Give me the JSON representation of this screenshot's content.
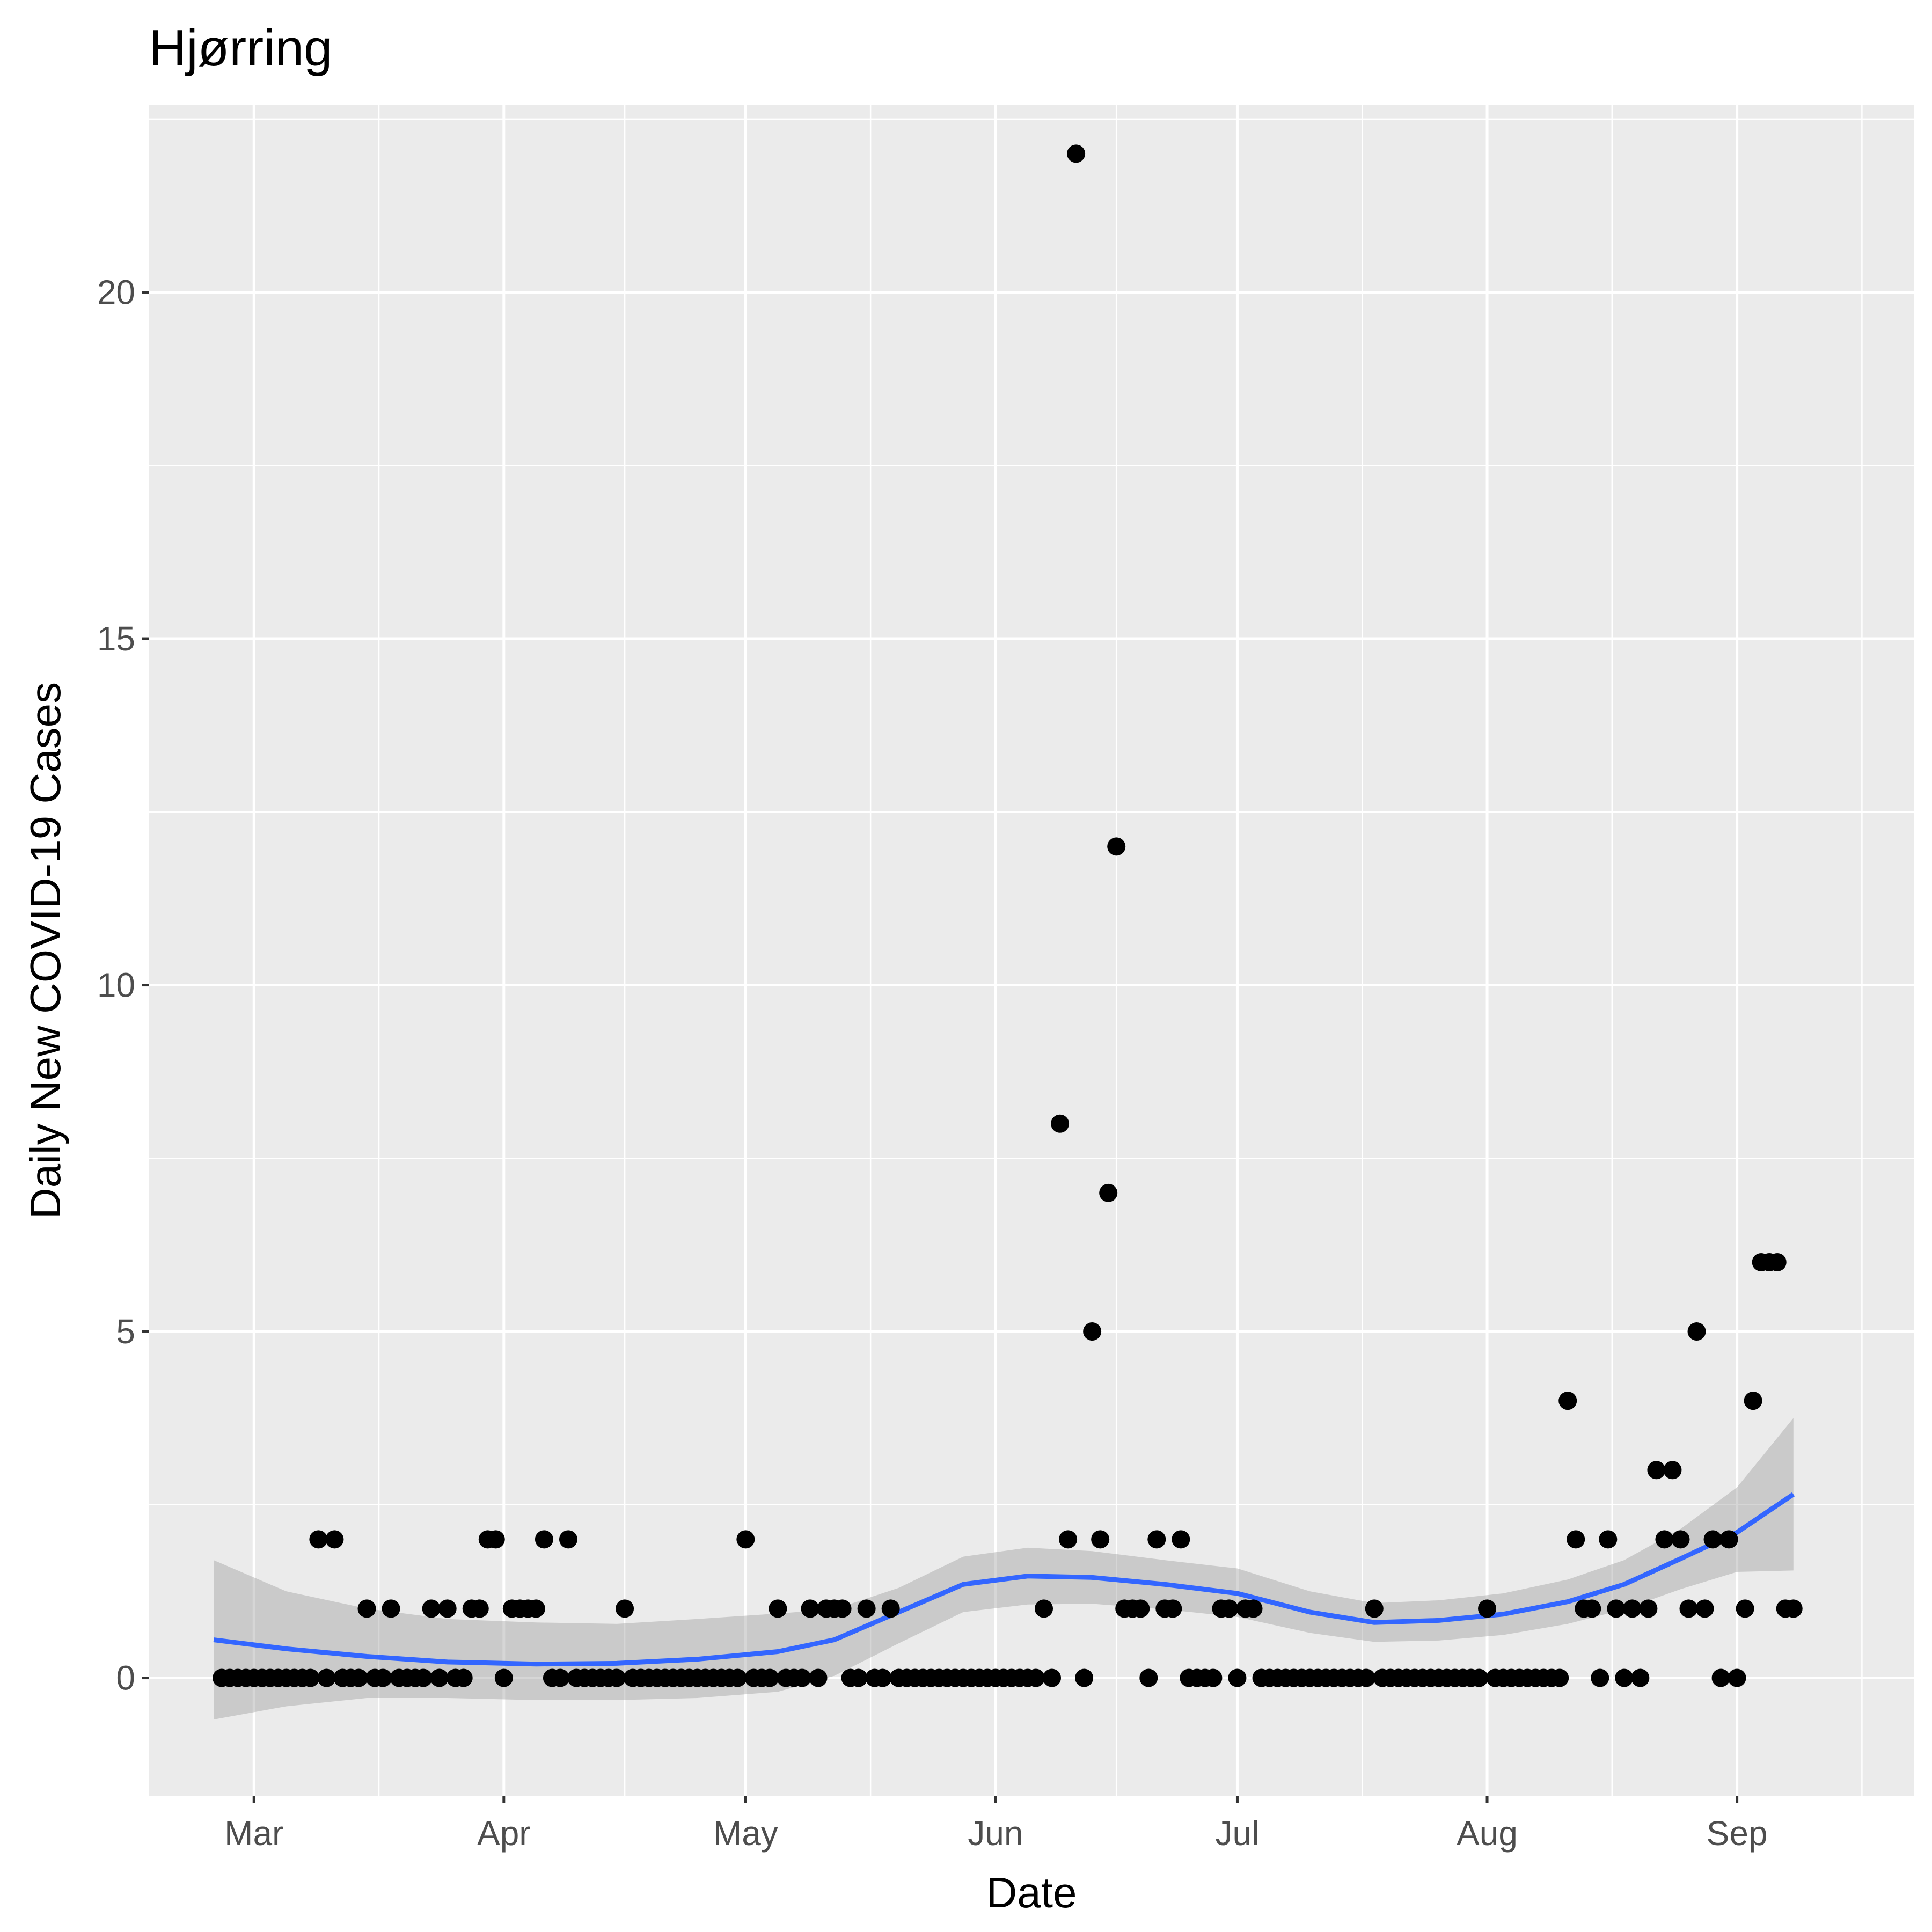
{
  "chart_data": {
    "type": "scatter",
    "title": "Hjørring",
    "xlabel": "Date",
    "ylabel": "Daily New COVID-19 Cases",
    "x_axis_type": "date",
    "xlim": [
      "2020-02-17",
      "2020-09-23"
    ],
    "ylim": [
      -1.7,
      22.7
    ],
    "x_ticks": [
      {
        "date": "2020-03-01",
        "label": "Mar"
      },
      {
        "date": "2020-04-01",
        "label": "Apr"
      },
      {
        "date": "2020-05-01",
        "label": "May"
      },
      {
        "date": "2020-06-01",
        "label": "Jun"
      },
      {
        "date": "2020-07-01",
        "label": "Jul"
      },
      {
        "date": "2020-08-01",
        "label": "Aug"
      },
      {
        "date": "2020-09-01",
        "label": "Sep"
      }
    ],
    "y_ticks": [
      0,
      5,
      10,
      15,
      20
    ],
    "grid": true,
    "colors": {
      "panel_background": "#ebebeb",
      "grid_line": "#ffffff",
      "point": "#000000",
      "smooth_line": "#3366ff",
      "ribbon": "#999999"
    },
    "series": [
      {
        "type": "points",
        "points": [
          [
            "2020-02-26",
            0
          ],
          [
            "2020-02-27",
            0
          ],
          [
            "2020-02-28",
            0
          ],
          [
            "2020-02-29",
            0
          ],
          [
            "2020-03-01",
            0
          ],
          [
            "2020-03-02",
            0
          ],
          [
            "2020-03-03",
            0
          ],
          [
            "2020-03-04",
            0
          ],
          [
            "2020-03-05",
            0
          ],
          [
            "2020-03-06",
            0
          ],
          [
            "2020-03-07",
            0
          ],
          [
            "2020-03-08",
            0
          ],
          [
            "2020-03-09",
            2
          ],
          [
            "2020-03-10",
            0
          ],
          [
            "2020-03-11",
            2
          ],
          [
            "2020-03-12",
            0
          ],
          [
            "2020-03-13",
            0
          ],
          [
            "2020-03-14",
            0
          ],
          [
            "2020-03-15",
            1
          ],
          [
            "2020-03-16",
            0
          ],
          [
            "2020-03-17",
            0
          ],
          [
            "2020-03-18",
            1
          ],
          [
            "2020-03-19",
            0
          ],
          [
            "2020-03-20",
            0
          ],
          [
            "2020-03-21",
            0
          ],
          [
            "2020-03-22",
            0
          ],
          [
            "2020-03-23",
            1
          ],
          [
            "2020-03-24",
            0
          ],
          [
            "2020-03-25",
            1
          ],
          [
            "2020-03-26",
            0
          ],
          [
            "2020-03-27",
            0
          ],
          [
            "2020-03-28",
            1
          ],
          [
            "2020-03-29",
            1
          ],
          [
            "2020-03-30",
            2
          ],
          [
            "2020-03-31",
            2
          ],
          [
            "2020-04-01",
            0
          ],
          [
            "2020-04-02",
            1
          ],
          [
            "2020-04-03",
            1
          ],
          [
            "2020-04-04",
            1
          ],
          [
            "2020-04-05",
            1
          ],
          [
            "2020-04-06",
            2
          ],
          [
            "2020-04-07",
            0
          ],
          [
            "2020-04-08",
            0
          ],
          [
            "2020-04-09",
            2
          ],
          [
            "2020-04-10",
            0
          ],
          [
            "2020-04-11",
            0
          ],
          [
            "2020-04-12",
            0
          ],
          [
            "2020-04-13",
            0
          ],
          [
            "2020-04-14",
            0
          ],
          [
            "2020-04-15",
            0
          ],
          [
            "2020-04-16",
            1
          ],
          [
            "2020-04-17",
            0
          ],
          [
            "2020-04-18",
            0
          ],
          [
            "2020-04-19",
            0
          ],
          [
            "2020-04-20",
            0
          ],
          [
            "2020-04-21",
            0
          ],
          [
            "2020-04-22",
            0
          ],
          [
            "2020-04-23",
            0
          ],
          [
            "2020-04-24",
            0
          ],
          [
            "2020-04-25",
            0
          ],
          [
            "2020-04-26",
            0
          ],
          [
            "2020-04-27",
            0
          ],
          [
            "2020-04-28",
            0
          ],
          [
            "2020-04-29",
            0
          ],
          [
            "2020-04-30",
            0
          ],
          [
            "2020-05-01",
            2
          ],
          [
            "2020-05-02",
            0
          ],
          [
            "2020-05-03",
            0
          ],
          [
            "2020-05-04",
            0
          ],
          [
            "2020-05-05",
            1
          ],
          [
            "2020-05-06",
            0
          ],
          [
            "2020-05-07",
            0
          ],
          [
            "2020-05-08",
            0
          ],
          [
            "2020-05-09",
            1
          ],
          [
            "2020-05-10",
            0
          ],
          [
            "2020-05-11",
            1
          ],
          [
            "2020-05-12",
            1
          ],
          [
            "2020-05-13",
            1
          ],
          [
            "2020-05-14",
            0
          ],
          [
            "2020-05-15",
            0
          ],
          [
            "2020-05-16",
            1
          ],
          [
            "2020-05-17",
            0
          ],
          [
            "2020-05-18",
            0
          ],
          [
            "2020-05-19",
            1
          ],
          [
            "2020-05-20",
            0
          ],
          [
            "2020-05-21",
            0
          ],
          [
            "2020-05-22",
            0
          ],
          [
            "2020-05-23",
            0
          ],
          [
            "2020-05-24",
            0
          ],
          [
            "2020-05-25",
            0
          ],
          [
            "2020-05-26",
            0
          ],
          [
            "2020-05-27",
            0
          ],
          [
            "2020-05-28",
            0
          ],
          [
            "2020-05-29",
            0
          ],
          [
            "2020-05-30",
            0
          ],
          [
            "2020-05-31",
            0
          ],
          [
            "2020-06-01",
            0
          ],
          [
            "2020-06-02",
            0
          ],
          [
            "2020-06-03",
            0
          ],
          [
            "2020-06-04",
            0
          ],
          [
            "2020-06-05",
            0
          ],
          [
            "2020-06-06",
            0
          ],
          [
            "2020-06-07",
            1
          ],
          [
            "2020-06-08",
            0
          ],
          [
            "2020-06-09",
            8
          ],
          [
            "2020-06-10",
            2
          ],
          [
            "2020-06-11",
            22
          ],
          [
            "2020-06-12",
            0
          ],
          [
            "2020-06-13",
            5
          ],
          [
            "2020-06-14",
            2
          ],
          [
            "2020-06-15",
            7
          ],
          [
            "2020-06-16",
            12
          ],
          [
            "2020-06-17",
            1
          ],
          [
            "2020-06-18",
            1
          ],
          [
            "2020-06-19",
            1
          ],
          [
            "2020-06-20",
            0
          ],
          [
            "2020-06-21",
            2
          ],
          [
            "2020-06-22",
            1
          ],
          [
            "2020-06-23",
            1
          ],
          [
            "2020-06-24",
            2
          ],
          [
            "2020-06-25",
            0
          ],
          [
            "2020-06-26",
            0
          ],
          [
            "2020-06-27",
            0
          ],
          [
            "2020-06-28",
            0
          ],
          [
            "2020-06-29",
            1
          ],
          [
            "2020-06-30",
            1
          ],
          [
            "2020-07-01",
            0
          ],
          [
            "2020-07-02",
            1
          ],
          [
            "2020-07-03",
            1
          ],
          [
            "2020-07-04",
            0
          ],
          [
            "2020-07-05",
            0
          ],
          [
            "2020-07-06",
            0
          ],
          [
            "2020-07-07",
            0
          ],
          [
            "2020-07-08",
            0
          ],
          [
            "2020-07-09",
            0
          ],
          [
            "2020-07-10",
            0
          ],
          [
            "2020-07-11",
            0
          ],
          [
            "2020-07-12",
            0
          ],
          [
            "2020-07-13",
            0
          ],
          [
            "2020-07-14",
            0
          ],
          [
            "2020-07-15",
            0
          ],
          [
            "2020-07-16",
            0
          ],
          [
            "2020-07-17",
            0
          ],
          [
            "2020-07-18",
            1
          ],
          [
            "2020-07-19",
            0
          ],
          [
            "2020-07-20",
            0
          ],
          [
            "2020-07-21",
            0
          ],
          [
            "2020-07-22",
            0
          ],
          [
            "2020-07-23",
            0
          ],
          [
            "2020-07-24",
            0
          ],
          [
            "2020-07-25",
            0
          ],
          [
            "2020-07-26",
            0
          ],
          [
            "2020-07-27",
            0
          ],
          [
            "2020-07-28",
            0
          ],
          [
            "2020-07-29",
            0
          ],
          [
            "2020-07-30",
            0
          ],
          [
            "2020-07-31",
            0
          ],
          [
            "2020-08-01",
            1
          ],
          [
            "2020-08-02",
            0
          ],
          [
            "2020-08-03",
            0
          ],
          [
            "2020-08-04",
            0
          ],
          [
            "2020-08-05",
            0
          ],
          [
            "2020-08-06",
            0
          ],
          [
            "2020-08-07",
            0
          ],
          [
            "2020-08-08",
            0
          ],
          [
            "2020-08-09",
            0
          ],
          [
            "2020-08-10",
            0
          ],
          [
            "2020-08-11",
            4
          ],
          [
            "2020-08-12",
            2
          ],
          [
            "2020-08-13",
            1
          ],
          [
            "2020-08-14",
            1
          ],
          [
            "2020-08-15",
            0
          ],
          [
            "2020-08-16",
            2
          ],
          [
            "2020-08-17",
            1
          ],
          [
            "2020-08-18",
            0
          ],
          [
            "2020-08-19",
            1
          ],
          [
            "2020-08-20",
            0
          ],
          [
            "2020-08-21",
            1
          ],
          [
            "2020-08-22",
            3
          ],
          [
            "2020-08-23",
            2
          ],
          [
            "2020-08-24",
            3
          ],
          [
            "2020-08-25",
            2
          ],
          [
            "2020-08-26",
            1
          ],
          [
            "2020-08-27",
            5
          ],
          [
            "2020-08-28",
            1
          ],
          [
            "2020-08-29",
            2
          ],
          [
            "2020-08-30",
            0
          ],
          [
            "2020-08-31",
            2
          ],
          [
            "2020-09-01",
            0
          ],
          [
            "2020-09-02",
            1
          ],
          [
            "2020-09-03",
            4
          ],
          [
            "2020-09-04",
            6
          ],
          [
            "2020-09-05",
            6
          ],
          [
            "2020-09-06",
            6
          ],
          [
            "2020-09-07",
            1
          ],
          [
            "2020-09-08",
            1
          ]
        ]
      },
      {
        "type": "smooth",
        "points": [
          [
            "2020-02-25",
            0.55
          ],
          [
            "2020-03-05",
            0.42
          ],
          [
            "2020-03-15",
            0.31
          ],
          [
            "2020-03-25",
            0.23
          ],
          [
            "2020-04-05",
            0.2
          ],
          [
            "2020-04-15",
            0.21
          ],
          [
            "2020-04-25",
            0.27
          ],
          [
            "2020-05-05",
            0.38
          ],
          [
            "2020-05-12",
            0.55
          ],
          [
            "2020-05-20",
            0.95
          ],
          [
            "2020-05-28",
            1.35
          ],
          [
            "2020-06-05",
            1.47
          ],
          [
            "2020-06-13",
            1.45
          ],
          [
            "2020-06-22",
            1.35
          ],
          [
            "2020-07-01",
            1.22
          ],
          [
            "2020-07-10",
            0.95
          ],
          [
            "2020-07-18",
            0.8
          ],
          [
            "2020-07-26",
            0.83
          ],
          [
            "2020-08-03",
            0.92
          ],
          [
            "2020-08-11",
            1.1
          ],
          [
            "2020-08-18",
            1.35
          ],
          [
            "2020-08-25",
            1.72
          ],
          [
            "2020-09-01",
            2.1
          ],
          [
            "2020-09-08",
            2.65
          ]
        ],
        "ribbon_upper": [
          1.7,
          1.25,
          1.0,
          0.85,
          0.8,
          0.78,
          0.85,
          0.93,
          0.99,
          1.3,
          1.75,
          1.88,
          1.83,
          1.7,
          1.58,
          1.25,
          1.08,
          1.12,
          1.22,
          1.42,
          1.7,
          2.15,
          2.75,
          3.75
        ],
        "ribbon_lower": [
          -0.6,
          -0.41,
          -0.29,
          -0.29,
          -0.32,
          -0.32,
          -0.29,
          -0.2,
          0.03,
          0.5,
          0.95,
          1.06,
          1.07,
          0.99,
          0.88,
          0.65,
          0.52,
          0.54,
          0.62,
          0.78,
          0.99,
          1.28,
          1.53,
          1.55
        ]
      }
    ]
  }
}
